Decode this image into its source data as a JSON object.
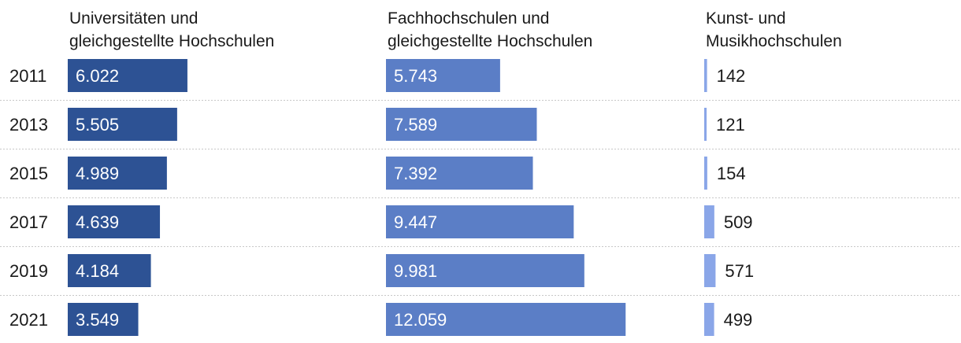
{
  "chart_data": {
    "type": "bar",
    "categories": [
      "2011",
      "2013",
      "2015",
      "2017",
      "2019",
      "2021"
    ],
    "series": [
      {
        "name": "Universitäten und gleichgestellte Hochschulen",
        "header_lines": [
          "Universitäten und",
          "gleichgestellte Hochschulen"
        ],
        "values": [
          6022,
          5505,
          4989,
          4639,
          4184,
          3549
        ],
        "labels": [
          "6.022",
          "5.505",
          "4.989",
          "4.639",
          "4.184",
          "3.549"
        ],
        "color": "#2d5294"
      },
      {
        "name": "Fachhochschulen und gleichgestellte Hochschulen",
        "header_lines": [
          "Fachhochschulen und",
          "gleichgestellte Hochschulen"
        ],
        "values": [
          5743,
          7589,
          7392,
          9447,
          9981,
          12059
        ],
        "labels": [
          "5.743",
          "7.589",
          "7.392",
          "9.447",
          "9.981",
          "12.059"
        ],
        "color": "#5b7ec6"
      },
      {
        "name": "Kunst- und Musikhochschulen",
        "header_lines": [
          "Kunst- und",
          "Musikhochschulen"
        ],
        "values": [
          142,
          121,
          154,
          509,
          571,
          499
        ],
        "labels": [
          "142",
          "121",
          "154",
          "509",
          "571",
          "499"
        ],
        "color": "#8aa6e8"
      }
    ],
    "label_colors": {
      "inside": "#ffffff",
      "outside": "#1a1a1a"
    },
    "separator_color": "#c8c8c8"
  }
}
